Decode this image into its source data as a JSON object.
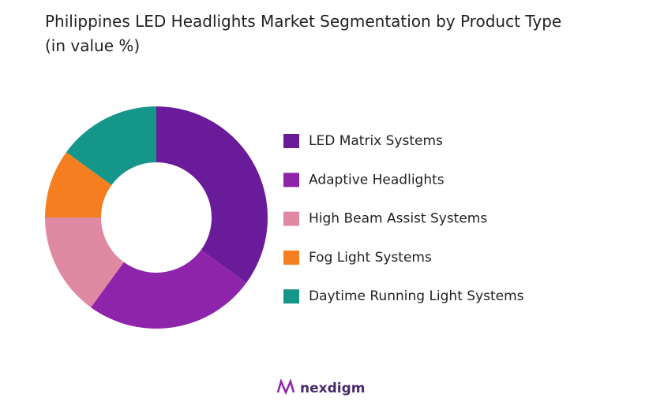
{
  "chart_data": {
    "type": "donut",
    "title": "Philippines LED Headlights Market Segmentation by Product Type (in value %)",
    "categories": [
      "LED Matrix Systems",
      "Adaptive Headlights",
      "High Beam Assist Systems",
      "Fog Light Systems",
      "Daytime Running Light Systems"
    ],
    "values": [
      35,
      25,
      15,
      10,
      15
    ],
    "colors": [
      "#6a1b9a",
      "#8e24aa",
      "#df8aa2",
      "#f57f20",
      "#14968a"
    ],
    "legend": "right"
  },
  "logo": "nexdigm"
}
